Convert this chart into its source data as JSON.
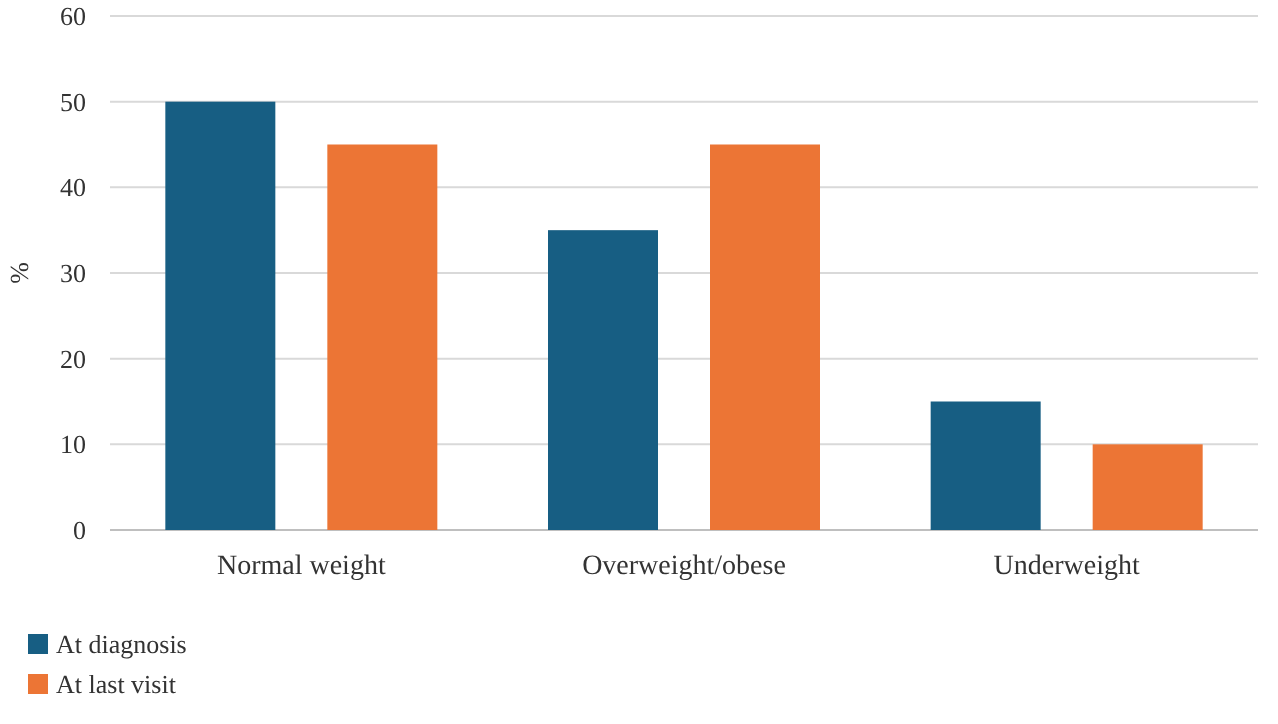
{
  "chart_data": {
    "type": "bar",
    "ylabel": "%",
    "categories": [
      "Normal weight",
      "Overweight/obese",
      "Underweight"
    ],
    "series": [
      {
        "name": "At diagnosis",
        "color": "#175e83",
        "values": [
          50,
          35,
          15
        ]
      },
      {
        "name": "At last visit",
        "color": "#ec7535",
        "values": [
          45,
          45,
          10
        ]
      }
    ],
    "ylim": [
      0,
      60
    ],
    "yticks": [
      0,
      10,
      20,
      30,
      40,
      50,
      60
    ],
    "grid": "y",
    "legend": "bottom left"
  }
}
